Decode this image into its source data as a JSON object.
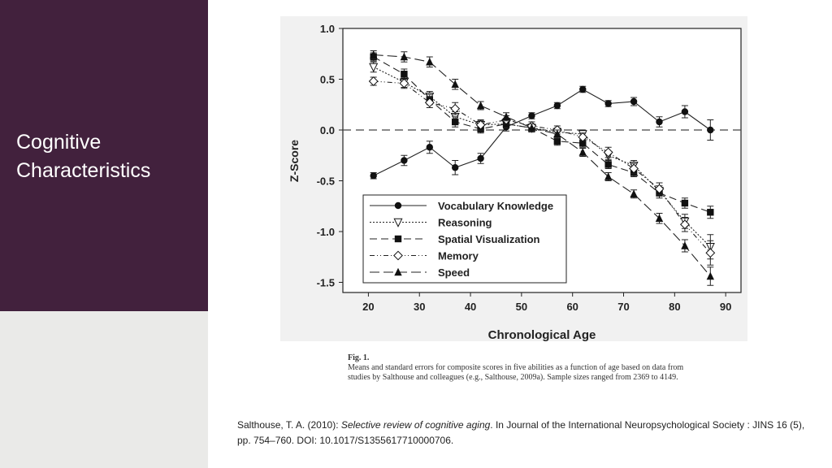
{
  "slide": {
    "title_line1": "Cognitive",
    "title_line2": "Characteristics"
  },
  "figure": {
    "label": "Fig. 1.",
    "caption": "Means and standard errors for composite scores in five abilities as a function of age based on data from studies by Salthouse and colleagues (e.g., Salthouse, 2009a). Sample sizes ranged from 2369 to 4149."
  },
  "citation": {
    "prefix": "Salthouse, T. A. (2010): ",
    "title": "Selective review of cognitive aging",
    "suffix": ". In Journal of the International Neuropsychological Society : JINS 16 (5), pp. 754–760. DOI: 10.1017/S1355617710000706."
  },
  "chart_data": {
    "type": "line",
    "title": "",
    "xlabel": "Chronological Age",
    "ylabel": "Z-Score",
    "xlim": [
      15,
      93
    ],
    "ylim": [
      -1.6,
      1.0
    ],
    "xticks": [
      20,
      30,
      40,
      50,
      60,
      70,
      80,
      90
    ],
    "yticks": [
      1.0,
      0.5,
      0.0,
      -0.5,
      -1.0,
      -1.5
    ],
    "xtick_labels": [
      "20",
      "30",
      "40",
      "50",
      "60",
      "70",
      "80",
      "90"
    ],
    "ytick_labels": [
      "1.0",
      "0.5",
      "0.0",
      "-0.5",
      "-1.0",
      "-1.5"
    ],
    "reference_line": 0.0,
    "x": [
      21,
      27,
      32,
      37,
      42,
      47,
      52,
      57,
      62,
      67,
      72,
      77,
      82,
      87
    ],
    "legend_position": "bottom-left",
    "series": [
      {
        "name": "Vocabulary Knowledge",
        "marker": "circle",
        "dash": "",
        "values": [
          -0.45,
          -0.3,
          -0.17,
          -0.37,
          -0.28,
          0.03,
          0.14,
          0.24,
          0.4,
          0.26,
          0.28,
          0.08,
          0.18,
          0.0
        ],
        "errors": [
          0.03,
          0.05,
          0.06,
          0.07,
          0.05,
          0.04,
          0.03,
          0.03,
          0.03,
          0.03,
          0.04,
          0.05,
          0.06,
          0.1
        ]
      },
      {
        "name": "Reasoning",
        "marker": "triangle-down",
        "dash": "2,2",
        "values": [
          0.62,
          0.47,
          0.33,
          0.13,
          0.05,
          0.06,
          0.02,
          -0.02,
          -0.04,
          -0.25,
          -0.35,
          -0.6,
          -0.9,
          -1.15
        ],
        "errors": [
          0.05,
          0.05,
          0.05,
          0.05,
          0.04,
          0.04,
          0.04,
          0.04,
          0.04,
          0.04,
          0.05,
          0.05,
          0.07,
          0.12
        ]
      },
      {
        "name": "Spatial Visualization",
        "marker": "square",
        "dash": "9,5",
        "values": [
          0.72,
          0.55,
          0.3,
          0.08,
          0.01,
          0.06,
          0.02,
          -0.11,
          -0.13,
          -0.34,
          -0.42,
          -0.62,
          -0.72,
          -0.81
        ],
        "errors": [
          0.04,
          0.05,
          0.05,
          0.05,
          0.04,
          0.04,
          0.04,
          0.04,
          0.04,
          0.04,
          0.04,
          0.05,
          0.05,
          0.06
        ]
      },
      {
        "name": "Memory",
        "marker": "diamond",
        "dash": "6,3,1,3,1,3",
        "values": [
          0.48,
          0.46,
          0.27,
          0.21,
          0.05,
          0.1,
          0.04,
          0.0,
          -0.07,
          -0.22,
          -0.38,
          -0.58,
          -0.93,
          -1.21
        ],
        "errors": [
          0.04,
          0.05,
          0.05,
          0.06,
          0.05,
          0.04,
          0.04,
          0.04,
          0.04,
          0.05,
          0.05,
          0.06,
          0.07,
          0.12
        ]
      },
      {
        "name": "Speed",
        "marker": "triangle-up",
        "dash": "12,5",
        "values": [
          0.74,
          0.72,
          0.67,
          0.45,
          0.24,
          0.13,
          0.02,
          -0.04,
          -0.22,
          -0.46,
          -0.63,
          -0.87,
          -1.14,
          -1.44
        ],
        "errors": [
          0.04,
          0.05,
          0.05,
          0.05,
          0.04,
          0.04,
          0.04,
          0.04,
          0.04,
          0.04,
          0.04,
          0.05,
          0.06,
          0.09
        ]
      }
    ]
  }
}
